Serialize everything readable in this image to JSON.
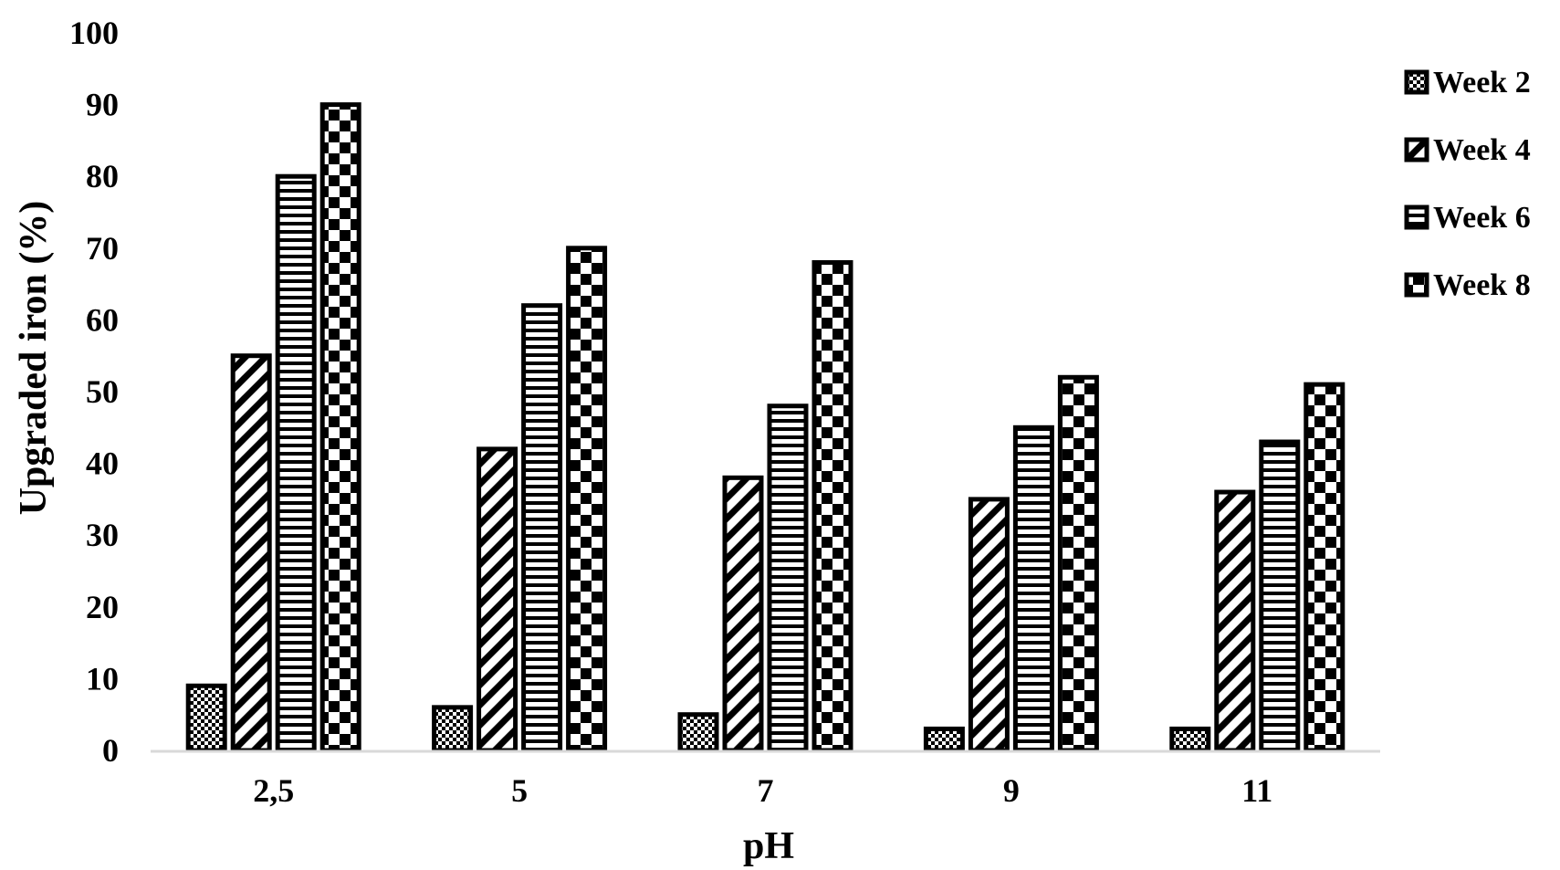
{
  "chart_data": {
    "type": "bar",
    "xlabel": "pH",
    "ylabel": "Upgraded iron (%)",
    "ylim": [
      0,
      100
    ],
    "yticks": [
      0,
      10,
      20,
      30,
      40,
      50,
      60,
      70,
      80,
      90,
      100
    ],
    "grid": false,
    "legend_position": "right",
    "categories": [
      "2,5",
      "5",
      "7",
      "9",
      "11"
    ],
    "series": [
      {
        "name": "Week 2",
        "values": [
          9,
          6,
          5,
          3,
          3
        ]
      },
      {
        "name": "Week 4",
        "values": [
          55,
          42,
          38,
          35,
          36
        ]
      },
      {
        "name": "Week 6",
        "values": [
          80,
          62,
          48,
          45,
          43
        ]
      },
      {
        "name": "Week 8",
        "values": [
          90,
          70,
          68,
          52,
          51
        ]
      }
    ],
    "colors": {
      "bar_fill": "#000000",
      "pattern_background": "#ffffff",
      "axis": "#d9d9d9"
    }
  }
}
